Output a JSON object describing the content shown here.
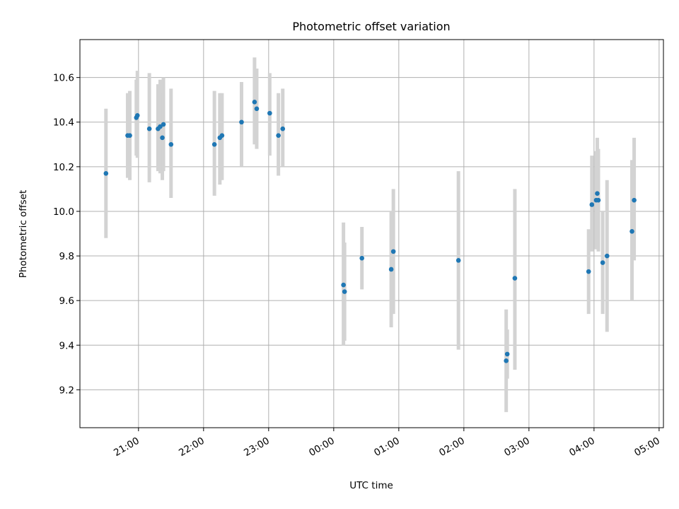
{
  "chart_data": {
    "type": "scatter",
    "title": "Photometric offset variation",
    "xlabel": "UTC time",
    "ylabel": "Photometric offset",
    "x_unit": "UTC hour-of-night (hours after 20:00 of previous day; ticks wrap at midnight)",
    "xlim": [
      "20:06",
      "05:04"
    ],
    "ylim": [
      9.03,
      10.77
    ],
    "x_ticks": [
      "21:00",
      "22:00",
      "23:00",
      "00:00",
      "01:00",
      "02:00",
      "03:00",
      "04:00",
      "05:00"
    ],
    "y_ticks": [
      "9.2",
      "9.4",
      "9.6",
      "9.8",
      "10.0",
      "10.2",
      "10.4",
      "10.6"
    ],
    "grid": true,
    "marker_color": "#1f77b4",
    "errorbar_color": "#d3d3d3",
    "points": [
      {
        "time": "20:30",
        "y": 10.17,
        "ylow": 9.88,
        "yhigh": 10.46
      },
      {
        "time": "20:50",
        "y": 10.34,
        "ylow": 10.15,
        "yhigh": 10.53
      },
      {
        "time": "20:52",
        "y": 10.34,
        "ylow": 10.14,
        "yhigh": 10.54
      },
      {
        "time": "20:58",
        "y": 10.42,
        "ylow": 10.25,
        "yhigh": 10.59
      },
      {
        "time": "20:59",
        "y": 10.43,
        "ylow": 10.24,
        "yhigh": 10.63
      },
      {
        "time": "21:10",
        "y": 10.37,
        "ylow": 10.13,
        "yhigh": 10.62
      },
      {
        "time": "21:18",
        "y": 10.37,
        "ylow": 10.18,
        "yhigh": 10.57
      },
      {
        "time": "21:20",
        "y": 10.38,
        "ylow": 10.17,
        "yhigh": 10.59
      },
      {
        "time": "21:22",
        "y": 10.33,
        "ylow": 10.14,
        "yhigh": 10.53
      },
      {
        "time": "21:23",
        "y": 10.39,
        "ylow": 10.18,
        "yhigh": 10.6
      },
      {
        "time": "21:30",
        "y": 10.3,
        "ylow": 10.06,
        "yhigh": 10.55
      },
      {
        "time": "22:10",
        "y": 10.3,
        "ylow": 10.07,
        "yhigh": 10.54
      },
      {
        "time": "22:15",
        "y": 10.33,
        "ylow": 10.12,
        "yhigh": 10.53
      },
      {
        "time": "22:17",
        "y": 10.34,
        "ylow": 10.14,
        "yhigh": 10.53
      },
      {
        "time": "22:35",
        "y": 10.4,
        "ylow": 10.2,
        "yhigh": 10.58
      },
      {
        "time": "22:47",
        "y": 10.49,
        "ylow": 10.3,
        "yhigh": 10.69
      },
      {
        "time": "22:49",
        "y": 10.46,
        "ylow": 10.28,
        "yhigh": 10.64
      },
      {
        "time": "23:01",
        "y": 10.44,
        "ylow": 10.25,
        "yhigh": 10.62
      },
      {
        "time": "23:09",
        "y": 10.34,
        "ylow": 10.16,
        "yhigh": 10.53
      },
      {
        "time": "23:13",
        "y": 10.37,
        "ylow": 10.2,
        "yhigh": 10.55
      },
      {
        "time": "00:09",
        "y": 9.67,
        "ylow": 9.4,
        "yhigh": 9.95
      },
      {
        "time": "00:10",
        "y": 9.64,
        "ylow": 9.42,
        "yhigh": 9.86
      },
      {
        "time": "00:26",
        "y": 9.79,
        "ylow": 9.65,
        "yhigh": 9.93
      },
      {
        "time": "00:53",
        "y": 9.74,
        "ylow": 9.48,
        "yhigh": 10.0
      },
      {
        "time": "00:55",
        "y": 9.82,
        "ylow": 9.54,
        "yhigh": 10.1
      },
      {
        "time": "01:55",
        "y": 9.78,
        "ylow": 9.38,
        "yhigh": 10.18
      },
      {
        "time": "02:39",
        "y": 9.33,
        "ylow": 9.1,
        "yhigh": 9.56
      },
      {
        "time": "02:40",
        "y": 9.36,
        "ylow": 9.25,
        "yhigh": 9.47
      },
      {
        "time": "02:47",
        "y": 9.7,
        "ylow": 9.29,
        "yhigh": 10.1
      },
      {
        "time": "03:55",
        "y": 9.73,
        "ylow": 9.54,
        "yhigh": 9.92
      },
      {
        "time": "03:58",
        "y": 10.03,
        "ylow": 9.82,
        "yhigh": 10.25
      },
      {
        "time": "04:02",
        "y": 10.05,
        "ylow": 9.83,
        "yhigh": 10.27
      },
      {
        "time": "04:03",
        "y": 10.08,
        "ylow": 9.83,
        "yhigh": 10.33
      },
      {
        "time": "04:04",
        "y": 10.05,
        "ylow": 9.82,
        "yhigh": 10.28
      },
      {
        "time": "04:08",
        "y": 9.77,
        "ylow": 9.54,
        "yhigh": 10.0
      },
      {
        "time": "04:12",
        "y": 9.8,
        "ylow": 9.46,
        "yhigh": 10.14
      },
      {
        "time": "04:35",
        "y": 9.91,
        "ylow": 9.6,
        "yhigh": 10.23
      },
      {
        "time": "04:37",
        "y": 10.05,
        "ylow": 9.78,
        "yhigh": 10.33
      }
    ]
  }
}
